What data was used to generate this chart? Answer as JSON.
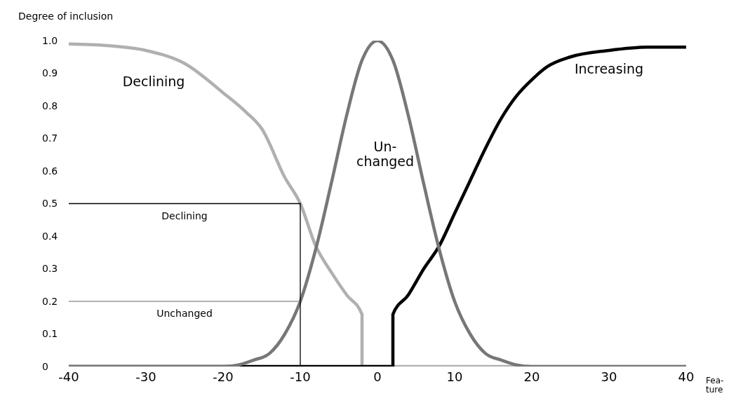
{
  "chart_data": {
    "type": "line",
    "xlabel": "Fea-\nture",
    "ylabel": "Degree of inclusion",
    "xlim": [
      -40,
      40
    ],
    "xticks": [
      -40,
      -30,
      -20,
      -10,
      0,
      10,
      20,
      30,
      40
    ],
    "ylim": [
      0,
      1
    ],
    "yticks": [
      0,
      0.1,
      0.2,
      0.3,
      0.4,
      0.5,
      0.6,
      0.7,
      0.8,
      0.9,
      {
        "value": 1,
        "label": "1.0"
      }
    ],
    "grid": false,
    "legend": false,
    "marker": "none",
    "line_style": "solid",
    "annotations": [
      {
        "text": "Declining",
        "x": -25,
        "y": 0.5
      },
      {
        "text": "Unchanged",
        "x": -25,
        "y": 0.2
      }
    ],
    "series": [
      {
        "name": "Declining",
        "color": "#b0b0b0",
        "x": [
          -40,
          -35,
          -30,
          -25,
          -20,
          -17,
          -15,
          -12,
          -10,
          -8,
          -6,
          -4,
          -2,
          -2,
          40
        ],
        "values": [
          0.99,
          0.985,
          0.97,
          0.93,
          0.84,
          0.78,
          0.73,
          0.58,
          0.5,
          0.37,
          0.29,
          0.22,
          0.16,
          0,
          0
        ]
      },
      {
        "name": "Increasing",
        "color": "#000000",
        "x": [
          -40,
          2,
          2,
          4,
          6,
          8,
          10,
          12,
          14,
          16,
          18,
          20,
          22,
          25,
          30,
          35,
          40
        ],
        "values": [
          0,
          0,
          0.16,
          0.22,
          0.3,
          0.37,
          0.47,
          0.57,
          0.67,
          0.76,
          0.83,
          0.88,
          0.92,
          0.95,
          0.97,
          0.98,
          0.98
        ]
      },
      {
        "name": "Un-\nchanged",
        "color": "#777777",
        "x": [
          -40,
          -20,
          -18,
          -16,
          -14,
          -12,
          -10,
          -8,
          -6,
          -4,
          -2,
          0,
          2,
          4,
          6,
          8,
          10,
          12,
          14,
          16,
          18,
          20,
          40
        ],
        "values": [
          0,
          0,
          0.005,
          0.02,
          0.04,
          0.1,
          0.2,
          0.36,
          0.56,
          0.77,
          0.94,
          1,
          0.94,
          0.77,
          0.56,
          0.36,
          0.2,
          0.1,
          0.04,
          0.02,
          0.005,
          0,
          0
        ]
      },
      {
        "color": "#000000",
        "x": [
          -40,
          -10
        ],
        "values": [
          0.5,
          0.5
        ]
      },
      {
        "color": "#999999",
        "x": [
          -40,
          -10
        ],
        "values": [
          0.2,
          0.2
        ]
      },
      {
        "color": "#000000",
        "x": [
          -10,
          -10
        ],
        "values": [
          0,
          0.5
        ]
      }
    ]
  }
}
